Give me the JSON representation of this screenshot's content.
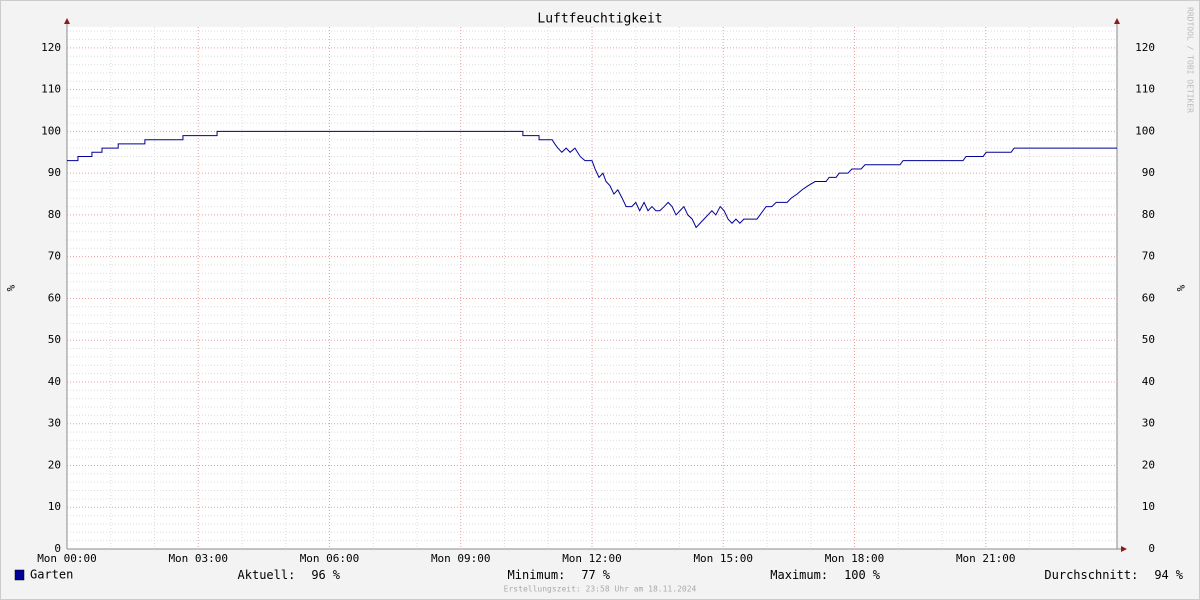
{
  "chart_data": {
    "type": "line",
    "title": "Luftfeuchtigkeit",
    "ylabel": "%",
    "watermark": "RRDTOOL / TOBI OETIKER",
    "footer": "Erstellungszeit: 23:58 Uhr am 18.11.2024",
    "xlim": [
      0,
      24
    ],
    "xticks": [
      {
        "value": 0,
        "label": "Mon 00:00"
      },
      {
        "value": 3,
        "label": "Mon 03:00"
      },
      {
        "value": 6,
        "label": "Mon 06:00"
      },
      {
        "value": 9,
        "label": "Mon 09:00"
      },
      {
        "value": 12,
        "label": "Mon 12:00"
      },
      {
        "value": 15,
        "label": "Mon 15:00"
      },
      {
        "value": 18,
        "label": "Mon 18:00"
      },
      {
        "value": 21,
        "label": "Mon 21:00"
      }
    ],
    "ylim": [
      0,
      125
    ],
    "yticks": [
      0,
      10,
      20,
      30,
      40,
      50,
      60,
      70,
      80,
      90,
      100,
      110,
      120
    ],
    "grid": true,
    "series": [
      {
        "name": "Garten",
        "color": "#000099",
        "x": [
          0,
          0.25,
          0.25,
          0.57,
          0.57,
          0.8,
          0.8,
          1.17,
          1.17,
          1.78,
          1.78,
          2.65,
          2.65,
          3.43,
          3.43,
          10.42,
          10.42,
          10.79,
          10.79,
          11.09,
          11.15,
          11.22,
          11.31,
          11.41,
          11.5,
          11.61,
          11.73,
          11.84,
          12,
          12.07,
          12.16,
          12.25,
          12.32,
          12.41,
          12.5,
          12.59,
          12.69,
          12.78,
          12.91,
          13,
          13.09,
          13.19,
          13.28,
          13.37,
          13.46,
          13.55,
          13.65,
          13.74,
          13.83,
          13.92,
          14.01,
          14.1,
          14.19,
          14.29,
          14.38,
          14.47,
          14.56,
          14.65,
          14.74,
          14.83,
          14.93,
          15.02,
          15.11,
          15.2,
          15.29,
          15.38,
          15.47,
          15.77,
          15.84,
          15.91,
          15.98,
          16.11,
          16.21,
          16.46,
          16.55,
          16.69,
          16.8,
          16.94,
          17.1,
          17.35,
          17.42,
          17.58,
          17.65,
          17.85,
          17.94,
          18.15,
          18.24,
          19.04,
          19.11,
          20.48,
          20.55,
          20.94,
          21.01,
          21.58,
          21.65,
          24
        ],
        "values": [
          93,
          93,
          94,
          94,
          95,
          95,
          96,
          96,
          97,
          97,
          98,
          98,
          99,
          99,
          100,
          100,
          99,
          99,
          98,
          98,
          97,
          96,
          95,
          96,
          95,
          96,
          94,
          93,
          93,
          91,
          89,
          90,
          88,
          87,
          85,
          86,
          84,
          82,
          82,
          83,
          81,
          83,
          81,
          82,
          81,
          81,
          82,
          83,
          82,
          80,
          81,
          82,
          80,
          79,
          77,
          78,
          79,
          80,
          81,
          80,
          82,
          81,
          79,
          78,
          79,
          78,
          79,
          79,
          80,
          81,
          82,
          82,
          83,
          83,
          84,
          85,
          86,
          87,
          88,
          88,
          89,
          89,
          90,
          90,
          91,
          91,
          92,
          92,
          93,
          93,
          94,
          94,
          95,
          95,
          96,
          96
        ]
      }
    ],
    "stats": [
      {
        "label": "Aktuell:",
        "value": 96,
        "unit": "%"
      },
      {
        "label": "Minimum:",
        "value": 77,
        "unit": "%"
      },
      {
        "label": "Maximum:",
        "value": 100,
        "unit": "%"
      },
      {
        "label": "Durchschnitt:",
        "value": 94,
        "unit": "%"
      }
    ]
  }
}
